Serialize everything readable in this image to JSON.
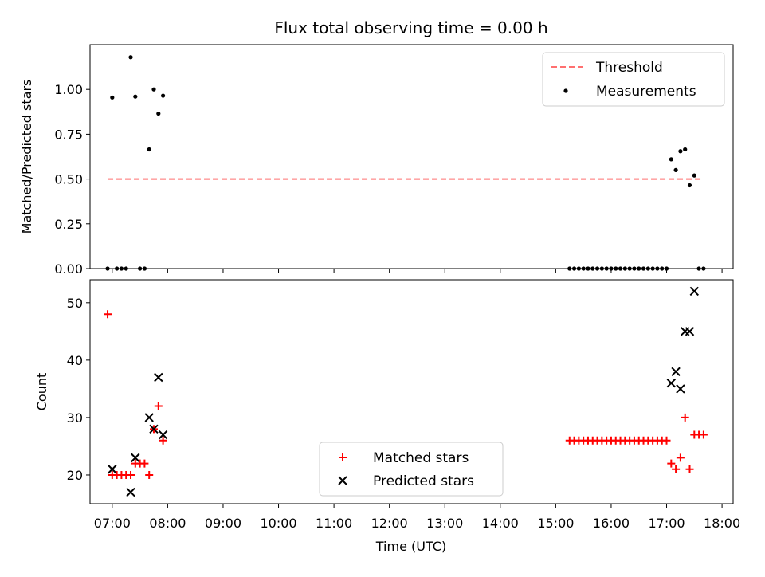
{
  "title": "Flux total observing time = 0.00 h",
  "xlabel": "Time (UTC)",
  "chart_data": [
    {
      "type": "scatter",
      "ylabel": "Matched/Predicted stars",
      "xlim": [
        "06:36",
        "18:12"
      ],
      "ylim": [
        0,
        1.25
      ],
      "yticks": [
        "0.00",
        "0.25",
        "0.50",
        "0.75",
        "1.00"
      ],
      "threshold": {
        "label": "Threshold",
        "value": 0.5,
        "x_range": [
          "06:55",
          "17:40"
        ],
        "color": "#ff7070"
      },
      "legend": {
        "placement": "top-right",
        "entries": [
          "Threshold",
          "Measurements"
        ]
      },
      "series": [
        {
          "name": "Measurements",
          "color": "#000000",
          "marker": "dot",
          "x": [
            "06:55",
            "07:00",
            "07:05",
            "07:10",
            "07:15",
            "07:20",
            "07:25",
            "07:30",
            "07:35",
            "07:40",
            "07:45",
            "07:50",
            "07:55",
            "15:15",
            "15:20",
            "15:25",
            "15:30",
            "15:35",
            "15:40",
            "15:45",
            "15:50",
            "15:55",
            "16:00",
            "16:05",
            "16:10",
            "16:15",
            "16:20",
            "16:25",
            "16:30",
            "16:35",
            "16:40",
            "16:45",
            "16:50",
            "16:55",
            "17:00",
            "17:05",
            "17:10",
            "17:15",
            "17:20",
            "17:25",
            "17:30",
            "17:35",
            "17:40"
          ],
          "y": [
            0,
            0.955,
            0,
            0,
            0,
            1.18,
            0.96,
            0,
            0,
            0.665,
            1.0,
            0.865,
            0.965,
            0,
            0,
            0,
            0,
            0,
            0,
            0,
            0,
            0,
            0,
            0,
            0,
            0,
            0,
            0,
            0,
            0,
            0,
            0,
            0,
            0,
            0,
            0.61,
            0.55,
            0.655,
            0.665,
            0.465,
            0.52,
            0,
            0
          ]
        }
      ]
    },
    {
      "type": "scatter",
      "ylabel": "Count",
      "xlim": [
        "06:36",
        "18:12"
      ],
      "ylim": [
        15,
        54
      ],
      "yticks": [
        "20",
        "30",
        "40",
        "50"
      ],
      "xticks": [
        "07:00",
        "08:00",
        "09:00",
        "10:00",
        "11:00",
        "12:00",
        "13:00",
        "14:00",
        "15:00",
        "16:00",
        "17:00",
        "18:00"
      ],
      "legend": {
        "placement": "lower-center",
        "entries": [
          "Matched stars",
          "Predicted stars"
        ]
      },
      "series": [
        {
          "name": "Matched stars",
          "color": "#ff0000",
          "marker": "plus",
          "x": [
            "06:55",
            "07:00",
            "07:05",
            "07:10",
            "07:15",
            "07:20",
            "07:25",
            "07:30",
            "07:35",
            "07:40",
            "07:45",
            "07:50",
            "07:55",
            "15:15",
            "15:20",
            "15:25",
            "15:30",
            "15:35",
            "15:40",
            "15:45",
            "15:50",
            "15:55",
            "16:00",
            "16:05",
            "16:10",
            "16:15",
            "16:20",
            "16:25",
            "16:30",
            "16:35",
            "16:40",
            "16:45",
            "16:50",
            "16:55",
            "17:00",
            "17:05",
            "17:10",
            "17:15",
            "17:20",
            "17:25",
            "17:30",
            "17:35",
            "17:40"
          ],
          "y": [
            48,
            20,
            20,
            20,
            20,
            20,
            22,
            22,
            22,
            20,
            28,
            32,
            26,
            26,
            26,
            26,
            26,
            26,
            26,
            26,
            26,
            26,
            26,
            26,
            26,
            26,
            26,
            26,
            26,
            26,
            26,
            26,
            26,
            26,
            26,
            22,
            21,
            23,
            30,
            21,
            27,
            27,
            27
          ]
        },
        {
          "name": "Predicted stars",
          "color": "#000000",
          "marker": "x",
          "x": [
            "07:00",
            "07:20",
            "07:25",
            "07:40",
            "07:45",
            "07:50",
            "07:55",
            "17:05",
            "17:10",
            "17:15",
            "17:20",
            "17:25",
            "17:30"
          ],
          "y": [
            21,
            17,
            23,
            30,
            28,
            37,
            27,
            36,
            38,
            35,
            45,
            45,
            52
          ]
        }
      ]
    }
  ]
}
